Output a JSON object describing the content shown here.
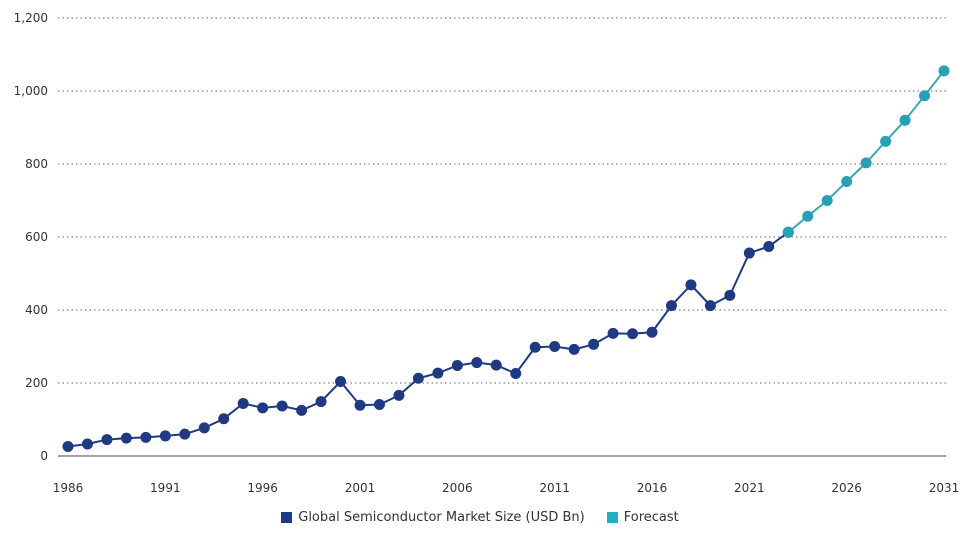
{
  "chart_data": {
    "type": "line",
    "x_ticks": [
      "1986",
      "1991",
      "1996",
      "2001",
      "2006",
      "2011",
      "2016",
      "2021",
      "2026",
      "2031"
    ],
    "y_ticks": [
      "0",
      "200",
      "400",
      "600",
      "800",
      "1,000",
      "1,200"
    ],
    "xlim": [
      1986,
      2031
    ],
    "ylim": [
      0,
      1200
    ],
    "grid": "horizontal dotted",
    "legend_position": "bottom",
    "series": [
      {
        "name": "Global Semiconductor Market Size (USD Bn)",
        "color": "#1f3a80",
        "x": [
          1986,
          1987,
          1988,
          1989,
          1990,
          1991,
          1992,
          1993,
          1994,
          1995,
          1996,
          1997,
          1998,
          1999,
          2000,
          2001,
          2002,
          2003,
          2004,
          2005,
          2006,
          2007,
          2008,
          2009,
          2010,
          2011,
          2012,
          2013,
          2014,
          2015,
          2016,
          2017,
          2018,
          2019,
          2020,
          2021,
          2022,
          2023
        ],
        "values": [
          26,
          33,
          45,
          49,
          51,
          55,
          60,
          77,
          102,
          144,
          132,
          137,
          125,
          149,
          204,
          139,
          141,
          166,
          213,
          227,
          248,
          256,
          249,
          226,
          298,
          300,
          292,
          306,
          336,
          335,
          339,
          412,
          469,
          412,
          440,
          556,
          574,
          613
        ]
      },
      {
        "name": "Forecast",
        "color": "#3aa6b9",
        "x": [
          2023,
          2024,
          2025,
          2026,
          2027,
          2028,
          2029,
          2030,
          2031
        ],
        "values": [
          613,
          657,
          700,
          752,
          803,
          862,
          920,
          987,
          1055
        ]
      }
    ]
  }
}
